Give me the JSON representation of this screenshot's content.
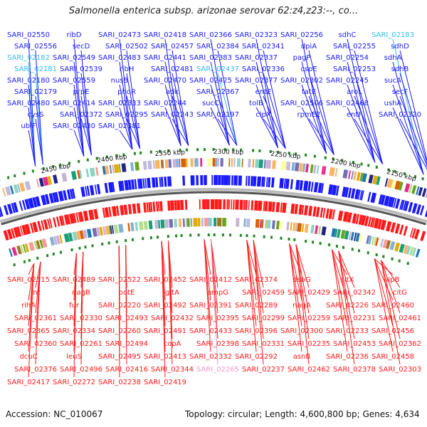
{
  "title": "Salmonella enterica subsp. arizonae serovar 62:z4,z23:--, co...",
  "footer": {
    "accession": "Accession: NC_010067",
    "summary": "Topology: circular; Length: 4,600,800 bp; Genes: 4,634"
  },
  "colors": {
    "plus_strand": "#1a1aff",
    "minus_strand": "#ff1a1a",
    "highlight": "#33bbee",
    "pseudo": "#ee99cc",
    "backbone": "#888888",
    "tick": "#228822"
  },
  "scale": [
    "2450 kbp",
    "2400 kbp",
    "2350 kbp",
    "2300 kbp",
    "2250 kbp",
    "2200 kbp",
    "2150 kbp"
  ],
  "top_labels": [
    {
      "t": "SARI_02550"
    },
    {
      "t": "ribD"
    },
    {
      "t": "SARI_02473"
    },
    {
      "t": "SARI_02418"
    },
    {
      "t": "SARI_02366"
    },
    {
      "t": "SARI_02323"
    },
    {
      "t": "SARI_02256"
    },
    {
      "t": "sdhC"
    },
    {
      "t": "SARI_02183",
      "c": "highlight"
    },
    {
      "t": "SARI_02556"
    },
    {
      "t": "secD"
    },
    {
      "t": "SARI_02502"
    },
    {
      "t": "SARI_02457"
    },
    {
      "t": "SARI_02384"
    },
    {
      "t": "SARI_02341"
    },
    {
      "t": "dpiA"
    },
    {
      "t": "SARI_02255"
    },
    {
      "t": "sdhD"
    },
    {
      "t": "SARI_02182",
      "c": "highlight"
    },
    {
      "t": "SARI_02549"
    },
    {
      "t": "SARI_02483"
    },
    {
      "t": "SARI_02441"
    },
    {
      "t": "SARI_02383"
    },
    {
      "t": "SARI_02337"
    },
    {
      "t": "pagP"
    },
    {
      "t": "SARI_02254"
    },
    {
      "t": "sdhA"
    },
    {
      "t": "SARI_02181",
      "c": "highlight"
    },
    {
      "t": "SARI_02539"
    },
    {
      "t": "ribH"
    },
    {
      "t": "SARI_02481"
    },
    {
      "t": "SARI_02437",
      "c": "highlight"
    },
    {
      "t": "SARI_02336"
    },
    {
      "t": "cspE"
    },
    {
      "t": "SARI_02253"
    },
    {
      "t": "sdhB"
    },
    {
      "t": "SARI_02180"
    },
    {
      "t": "SARI_02559"
    },
    {
      "t": "nusB"
    },
    {
      "t": "SARI_02470"
    },
    {
      "t": "SARI_02425"
    },
    {
      "t": "SARI_02377"
    },
    {
      "t": "SARI_02302"
    },
    {
      "t": "SARI_02245"
    },
    {
      "t": "sucA"
    },
    {
      "t": "SARI_02179"
    },
    {
      "t": "prpE"
    },
    {
      "t": "phoR"
    },
    {
      "t": "adk"
    },
    {
      "t": "SARI_02367"
    },
    {
      "t": "entE"
    },
    {
      "t": "tatE"
    },
    {
      "t": "aroL"
    },
    {
      "t": "secF"
    },
    {
      "t": "SARI_02480"
    },
    {
      "t": "SARI_02414"
    },
    {
      "t": "SARI_02333"
    },
    {
      "t": "SARI_02244"
    },
    {
      "t": "sucC"
    },
    {
      "t": "tolB"
    },
    {
      "t": "SARI_02506"
    },
    {
      "t": "SARI_02468"
    },
    {
      "t": "ushA"
    },
    {
      "t": "cysS"
    },
    {
      "t": "SARI_02372"
    },
    {
      "t": "SARI_02295"
    },
    {
      "t": "SARI_02243"
    },
    {
      "t": "SARI_02197"
    },
    {
      "t": "clpX"
    },
    {
      "t": "rpmE2"
    },
    {
      "t": "entF"
    },
    {
      "t": "SARI_02320"
    },
    {
      "t": "ubiF"
    },
    {
      "t": "SARI_02430"
    },
    {
      "t": "SARI_02381"
    }
  ],
  "bottom_labels": [
    {
      "t": "SARI_02515"
    },
    {
      "t": "SARI_02489"
    },
    {
      "t": "SARI_02522"
    },
    {
      "t": "SARI_02452"
    },
    {
      "t": "SARI_02412"
    },
    {
      "t": "SARI_02374"
    },
    {
      "t": "dsbG"
    },
    {
      "t": "citX"
    },
    {
      "t": "lipB"
    },
    {
      "t": "lnt"
    },
    {
      "t": "nagB"
    },
    {
      "t": "potE"
    },
    {
      "t": "gltA"
    },
    {
      "t": "ampG"
    },
    {
      "t": "SARI_02459"
    },
    {
      "t": "SARI_02429"
    },
    {
      "t": "SARI_02342"
    },
    {
      "t": "citG"
    },
    {
      "t": "rihA"
    },
    {
      "t": "fur"
    },
    {
      "t": "SARI_02220"
    },
    {
      "t": "SARI_02492"
    },
    {
      "t": "SARI_02391"
    },
    {
      "t": "SARI_02289"
    },
    {
      "t": "nagA"
    },
    {
      "t": "SARI_02226"
    },
    {
      "t": "SARI_02460"
    },
    {
      "t": "SARI_02361"
    },
    {
      "t": "SARI_02330"
    },
    {
      "t": "SARI_02493"
    },
    {
      "t": "SARI_02432"
    },
    {
      "t": "SARI_02395"
    },
    {
      "t": "SARI_02299"
    },
    {
      "t": "SARI_02259"
    },
    {
      "t": "SARI_02231"
    },
    {
      "t": "SARI_02461"
    },
    {
      "t": "SARI_02365"
    },
    {
      "t": "SARI_02334"
    },
    {
      "t": "SARI_02260"
    },
    {
      "t": "SARI_02491"
    },
    {
      "t": "SARI_02433"
    },
    {
      "t": "SARI_02396"
    },
    {
      "t": "SARI_02300"
    },
    {
      "t": "SARI_02233"
    },
    {
      "t": "SARI_02456"
    },
    {
      "t": "SARI_02360"
    },
    {
      "t": "SARI_02261"
    },
    {
      "t": "SARI_02494"
    },
    {
      "t": "copA"
    },
    {
      "t": "SARI_02398"
    },
    {
      "t": "SARI_02331"
    },
    {
      "t": "SARI_02235"
    },
    {
      "t": "SARI_02453"
    },
    {
      "t": "SARI_02362"
    },
    {
      "t": "dcuC"
    },
    {
      "t": "leuS"
    },
    {
      "t": "SARI_02495"
    },
    {
      "t": "SARI_02413"
    },
    {
      "t": "SARI_02332"
    },
    {
      "t": "SARI_02292"
    },
    {
      "t": "asnB"
    },
    {
      "t": "SARI_02236"
    },
    {
      "t": "SARI_02458"
    },
    {
      "t": "SARI_02376"
    },
    {
      "t": "SARI_02496"
    },
    {
      "t": "SARI_02416"
    },
    {
      "t": "SARI_02344"
    },
    {
      "t": "SARI_02265",
      "c": "pseudo"
    },
    {
      "t": "SARI_02237"
    },
    {
      "t": "SARI_02462"
    },
    {
      "t": "SARI_02378"
    },
    {
      "t": "SARI_02303"
    },
    {
      "t": "SARI_02417"
    },
    {
      "t": "SARI_02272"
    },
    {
      "t": "SARI_02238"
    },
    {
      "t": "SARI_02419"
    }
  ]
}
